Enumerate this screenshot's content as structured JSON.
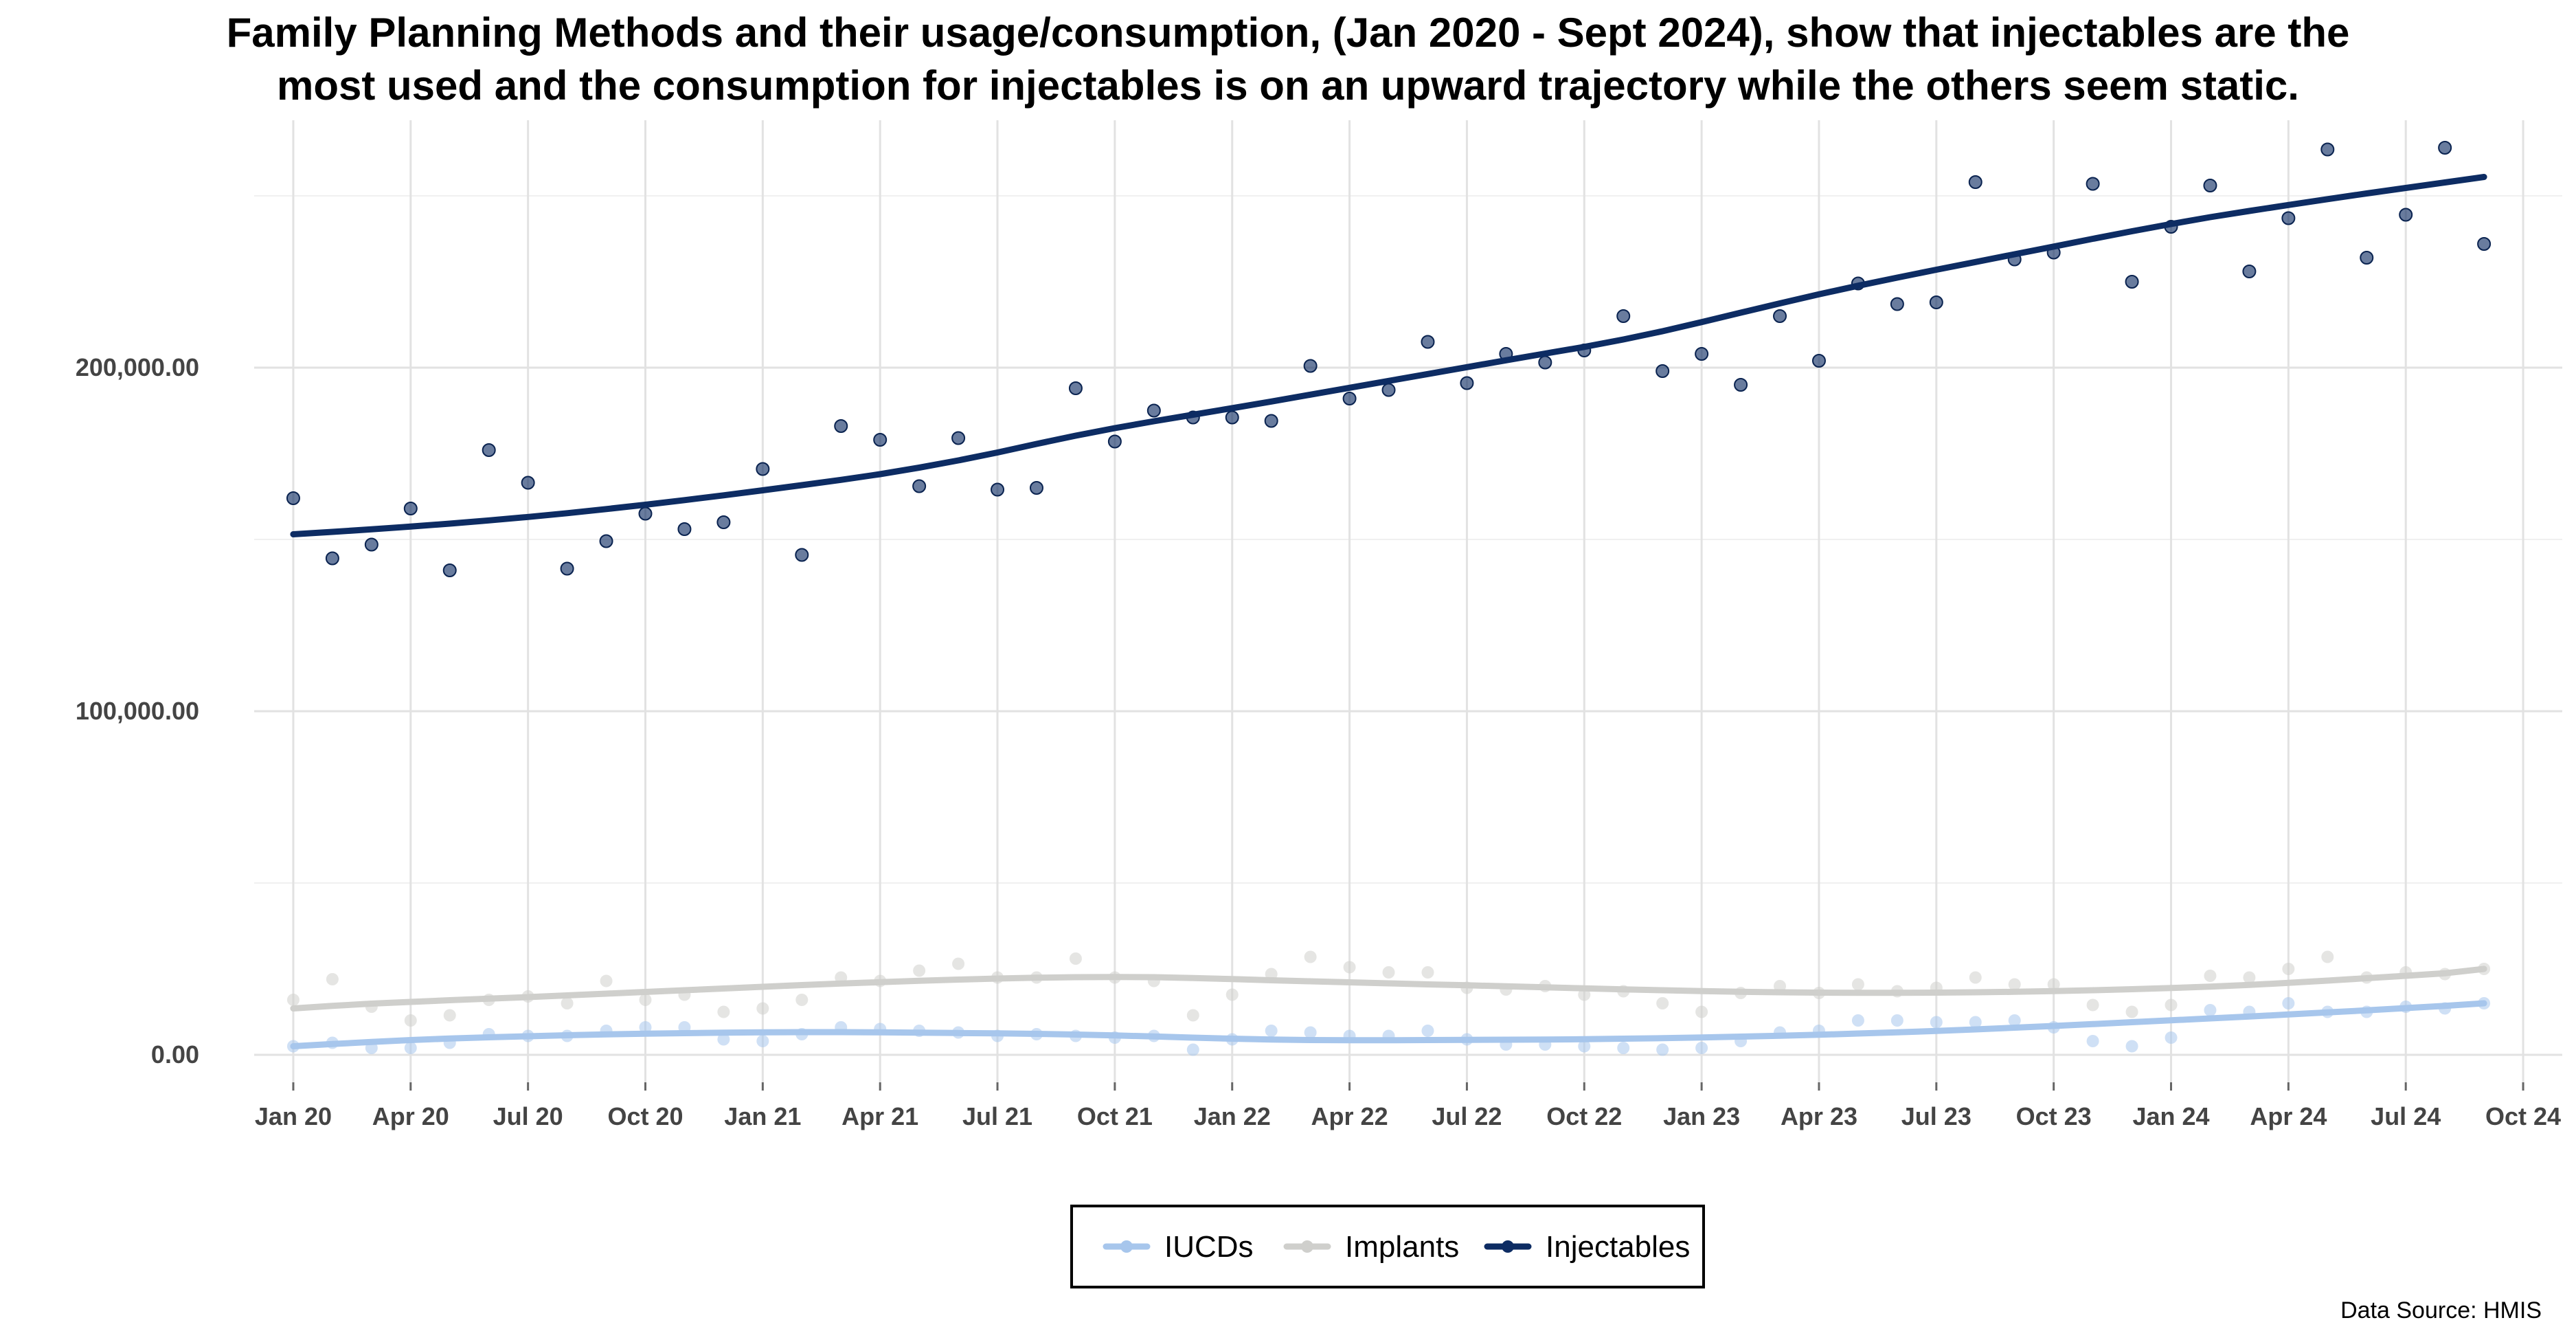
{
  "chart_data": {
    "type": "scatter",
    "title_lines": [
      "Family Planning Methods and their usage/consumption, (Jan 2020 - Sept 2024), show that injectables are the",
      "most used and the consumption for injectables is on an upward trajectory while the others seem static."
    ],
    "caption": "Data Source: HMIS",
    "x_start": "2020-01",
    "xlim": [
      "2019-12",
      "2024-11"
    ],
    "ylim": [
      -8000,
      272000
    ],
    "x_ticks": [
      {
        "label": "Jan 20",
        "date": "2020-01"
      },
      {
        "label": "Apr 20",
        "date": "2020-04"
      },
      {
        "label": "Jul 20",
        "date": "2020-07"
      },
      {
        "label": "Oct 20",
        "date": "2020-10"
      },
      {
        "label": "Jan 21",
        "date": "2021-01"
      },
      {
        "label": "Apr 21",
        "date": "2021-04"
      },
      {
        "label": "Jul 21",
        "date": "2021-07"
      },
      {
        "label": "Oct 21",
        "date": "2021-10"
      },
      {
        "label": "Jan 22",
        "date": "2022-01"
      },
      {
        "label": "Apr 22",
        "date": "2022-04"
      },
      {
        "label": "Jul 22",
        "date": "2022-07"
      },
      {
        "label": "Oct 22",
        "date": "2022-10"
      },
      {
        "label": "Jan 23",
        "date": "2023-01"
      },
      {
        "label": "Apr 23",
        "date": "2023-04"
      },
      {
        "label": "Jul 23",
        "date": "2023-07"
      },
      {
        "label": "Oct 23",
        "date": "2023-10"
      },
      {
        "label": "Jan 24",
        "date": "2024-01"
      },
      {
        "label": "Apr 24",
        "date": "2024-04"
      },
      {
        "label": "Jul 24",
        "date": "2024-07"
      },
      {
        "label": "Oct 24",
        "date": "2024-10"
      }
    ],
    "y_ticks": [
      {
        "label": "0.00",
        "value": 0
      },
      {
        "label": "100,000.00",
        "value": 100000
      },
      {
        "label": "200,000.00",
        "value": 200000
      }
    ],
    "grid": true,
    "legend_position": "bottom",
    "series": [
      {
        "name": "IUCDs",
        "color": "#a7c6ec",
        "values": [
          2500,
          3500,
          2000,
          2000,
          3500,
          6000,
          5500,
          5500,
          7000,
          8000,
          8000,
          4500,
          4000,
          6000,
          8000,
          7500,
          7000,
          6500,
          5500,
          6000,
          5500,
          5000,
          5500,
          1500,
          4500,
          7000,
          6500,
          5500,
          5500,
          7000,
          4500,
          3000,
          3000,
          2500,
          2000,
          1500,
          2000,
          4000,
          6500,
          7000,
          10000,
          10000,
          9500,
          9500,
          10000,
          8000,
          4000,
          2500,
          5000,
          13000,
          12500,
          15000,
          12500,
          12500,
          14000,
          13500,
          15000
        ],
        "trend": [
          2500,
          3150,
          3750,
          4300,
          4750,
          5100,
          5400,
          5700,
          5950,
          6150,
          6300,
          6450,
          6550,
          6600,
          6600,
          6550,
          6450,
          6350,
          6250,
          6100,
          5900,
          5650,
          5350,
          5000,
          4700,
          4450,
          4300,
          4250,
          4250,
          4300,
          4350,
          4400,
          4450,
          4550,
          4700,
          4850,
          5050,
          5300,
          5550,
          5850,
          6200,
          6550,
          6950,
          7400,
          7900,
          8400,
          8950,
          9500,
          10050,
          10600,
          11150,
          11750,
          12350,
          12950,
          13600,
          14250,
          15000
        ]
      },
      {
        "name": "Implants",
        "color": "#cfcfcc",
        "values": [
          16000,
          22000,
          14000,
          10000,
          11500,
          16000,
          17000,
          15000,
          21500,
          16000,
          17500,
          12500,
          13500,
          16000,
          22500,
          21500,
          24500,
          26500,
          22500,
          22500,
          28000,
          22500,
          21500,
          11500,
          17500,
          23500,
          28500,
          25500,
          24000,
          24000,
          19500,
          19000,
          20000,
          17500,
          18500,
          15000,
          12500,
          18000,
          20000,
          18000,
          20500,
          18500,
          19500,
          22500,
          20500,
          20500,
          14500,
          12500,
          14500,
          23000,
          22500,
          25000,
          28500,
          22500,
          24000,
          23500,
          25000
        ],
        "trend": [
          13500,
          14250,
          14900,
          15400,
          15900,
          16350,
          16800,
          17300,
          17800,
          18300,
          18800,
          19300,
          19800,
          20300,
          20750,
          21150,
          21550,
          21900,
          22200,
          22450,
          22600,
          22650,
          22600,
          22350,
          22050,
          21700,
          21400,
          21100,
          20800,
          20500,
          20250,
          19950,
          19650,
          19350,
          19050,
          18800,
          18550,
          18350,
          18200,
          18100,
          18050,
          18050,
          18100,
          18200,
          18350,
          18550,
          18800,
          19100,
          19450,
          19850,
          20350,
          20950,
          21600,
          22300,
          23000,
          23750,
          25000
        ]
      },
      {
        "name": "Injectables",
        "color": "#0d2c63",
        "values": [
          162000,
          144500,
          148500,
          159000,
          141000,
          176000,
          166500,
          141500,
          149500,
          157500,
          153000,
          155000,
          170500,
          145500,
          183000,
          179000,
          165500,
          179500,
          164500,
          165000,
          194000,
          178500,
          187500,
          185500,
          185500,
          184500,
          200500,
          191000,
          193500,
          207500,
          195500,
          204000,
          201500,
          205000,
          215000,
          199000,
          204000,
          195000,
          215000,
          202000,
          224500,
          218500,
          219000,
          254000,
          231500,
          233500,
          253500,
          225000,
          241000,
          253000,
          228000,
          243500,
          263500,
          232000,
          244500,
          264000,
          236000
        ],
        "trend": [
          151500,
          152200,
          152950,
          153750,
          154600,
          155550,
          156550,
          157650,
          158850,
          160100,
          161450,
          162850,
          164300,
          165800,
          167350,
          169000,
          170900,
          173000,
          175300,
          177800,
          180200,
          182400,
          184400,
          186300,
          188200,
          190150,
          192150,
          194150,
          196150,
          198150,
          200150,
          202150,
          204100,
          206050,
          208200,
          210600,
          213250,
          216000,
          218700,
          221350,
          223850,
          226200,
          228500,
          230750,
          233000,
          235250,
          237500,
          239700,
          241800,
          243800,
          245600,
          247350,
          249050,
          250700,
          252300,
          253900,
          255500
        ]
      }
    ]
  }
}
